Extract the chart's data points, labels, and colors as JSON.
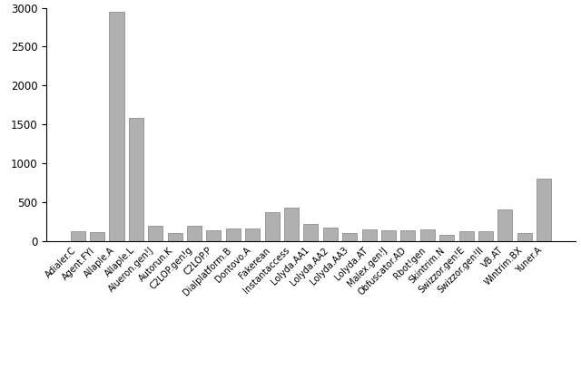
{
  "categories": [
    "Adialer.C",
    "Agent.FYI",
    "Allaple.A",
    "Allaple.L",
    "Alueron.gen!J",
    "Autorun.K",
    "C2LOP.gen!g",
    "C2LOP.P",
    "Dialplatform.B",
    "Dontovo.A",
    "Fakerean",
    "Instantaccess",
    "Lolyda.AA1",
    "Lolyda.AA2",
    "Lolyda.AA3",
    "Lolyda.AT",
    "Malex.gen!J",
    "Obfuscator.AD",
    "Rbot!gen",
    "Skintrim.N",
    "Swizzor.gen!E",
    "Swizzor.gen!II",
    "VB.AT",
    "Wintrim.BX",
    "Yuner.A"
  ],
  "values": [
    125,
    120,
    2950,
    1590,
    200,
    100,
    200,
    140,
    160,
    162,
    375,
    431,
    220,
    170,
    110,
    155,
    140,
    140,
    150,
    80,
    125,
    125,
    410,
    100,
    800
  ],
  "bar_color": "#b0b0b0",
  "bar_edge_color": "#808080",
  "ylim": [
    0,
    3000
  ],
  "yticks": [
    0,
    500,
    1000,
    1500,
    2000,
    2500,
    3000
  ],
  "background_color": "#ffffff",
  "tick_label_fontsize": 7.0,
  "ytick_label_fontsize": 8.5
}
